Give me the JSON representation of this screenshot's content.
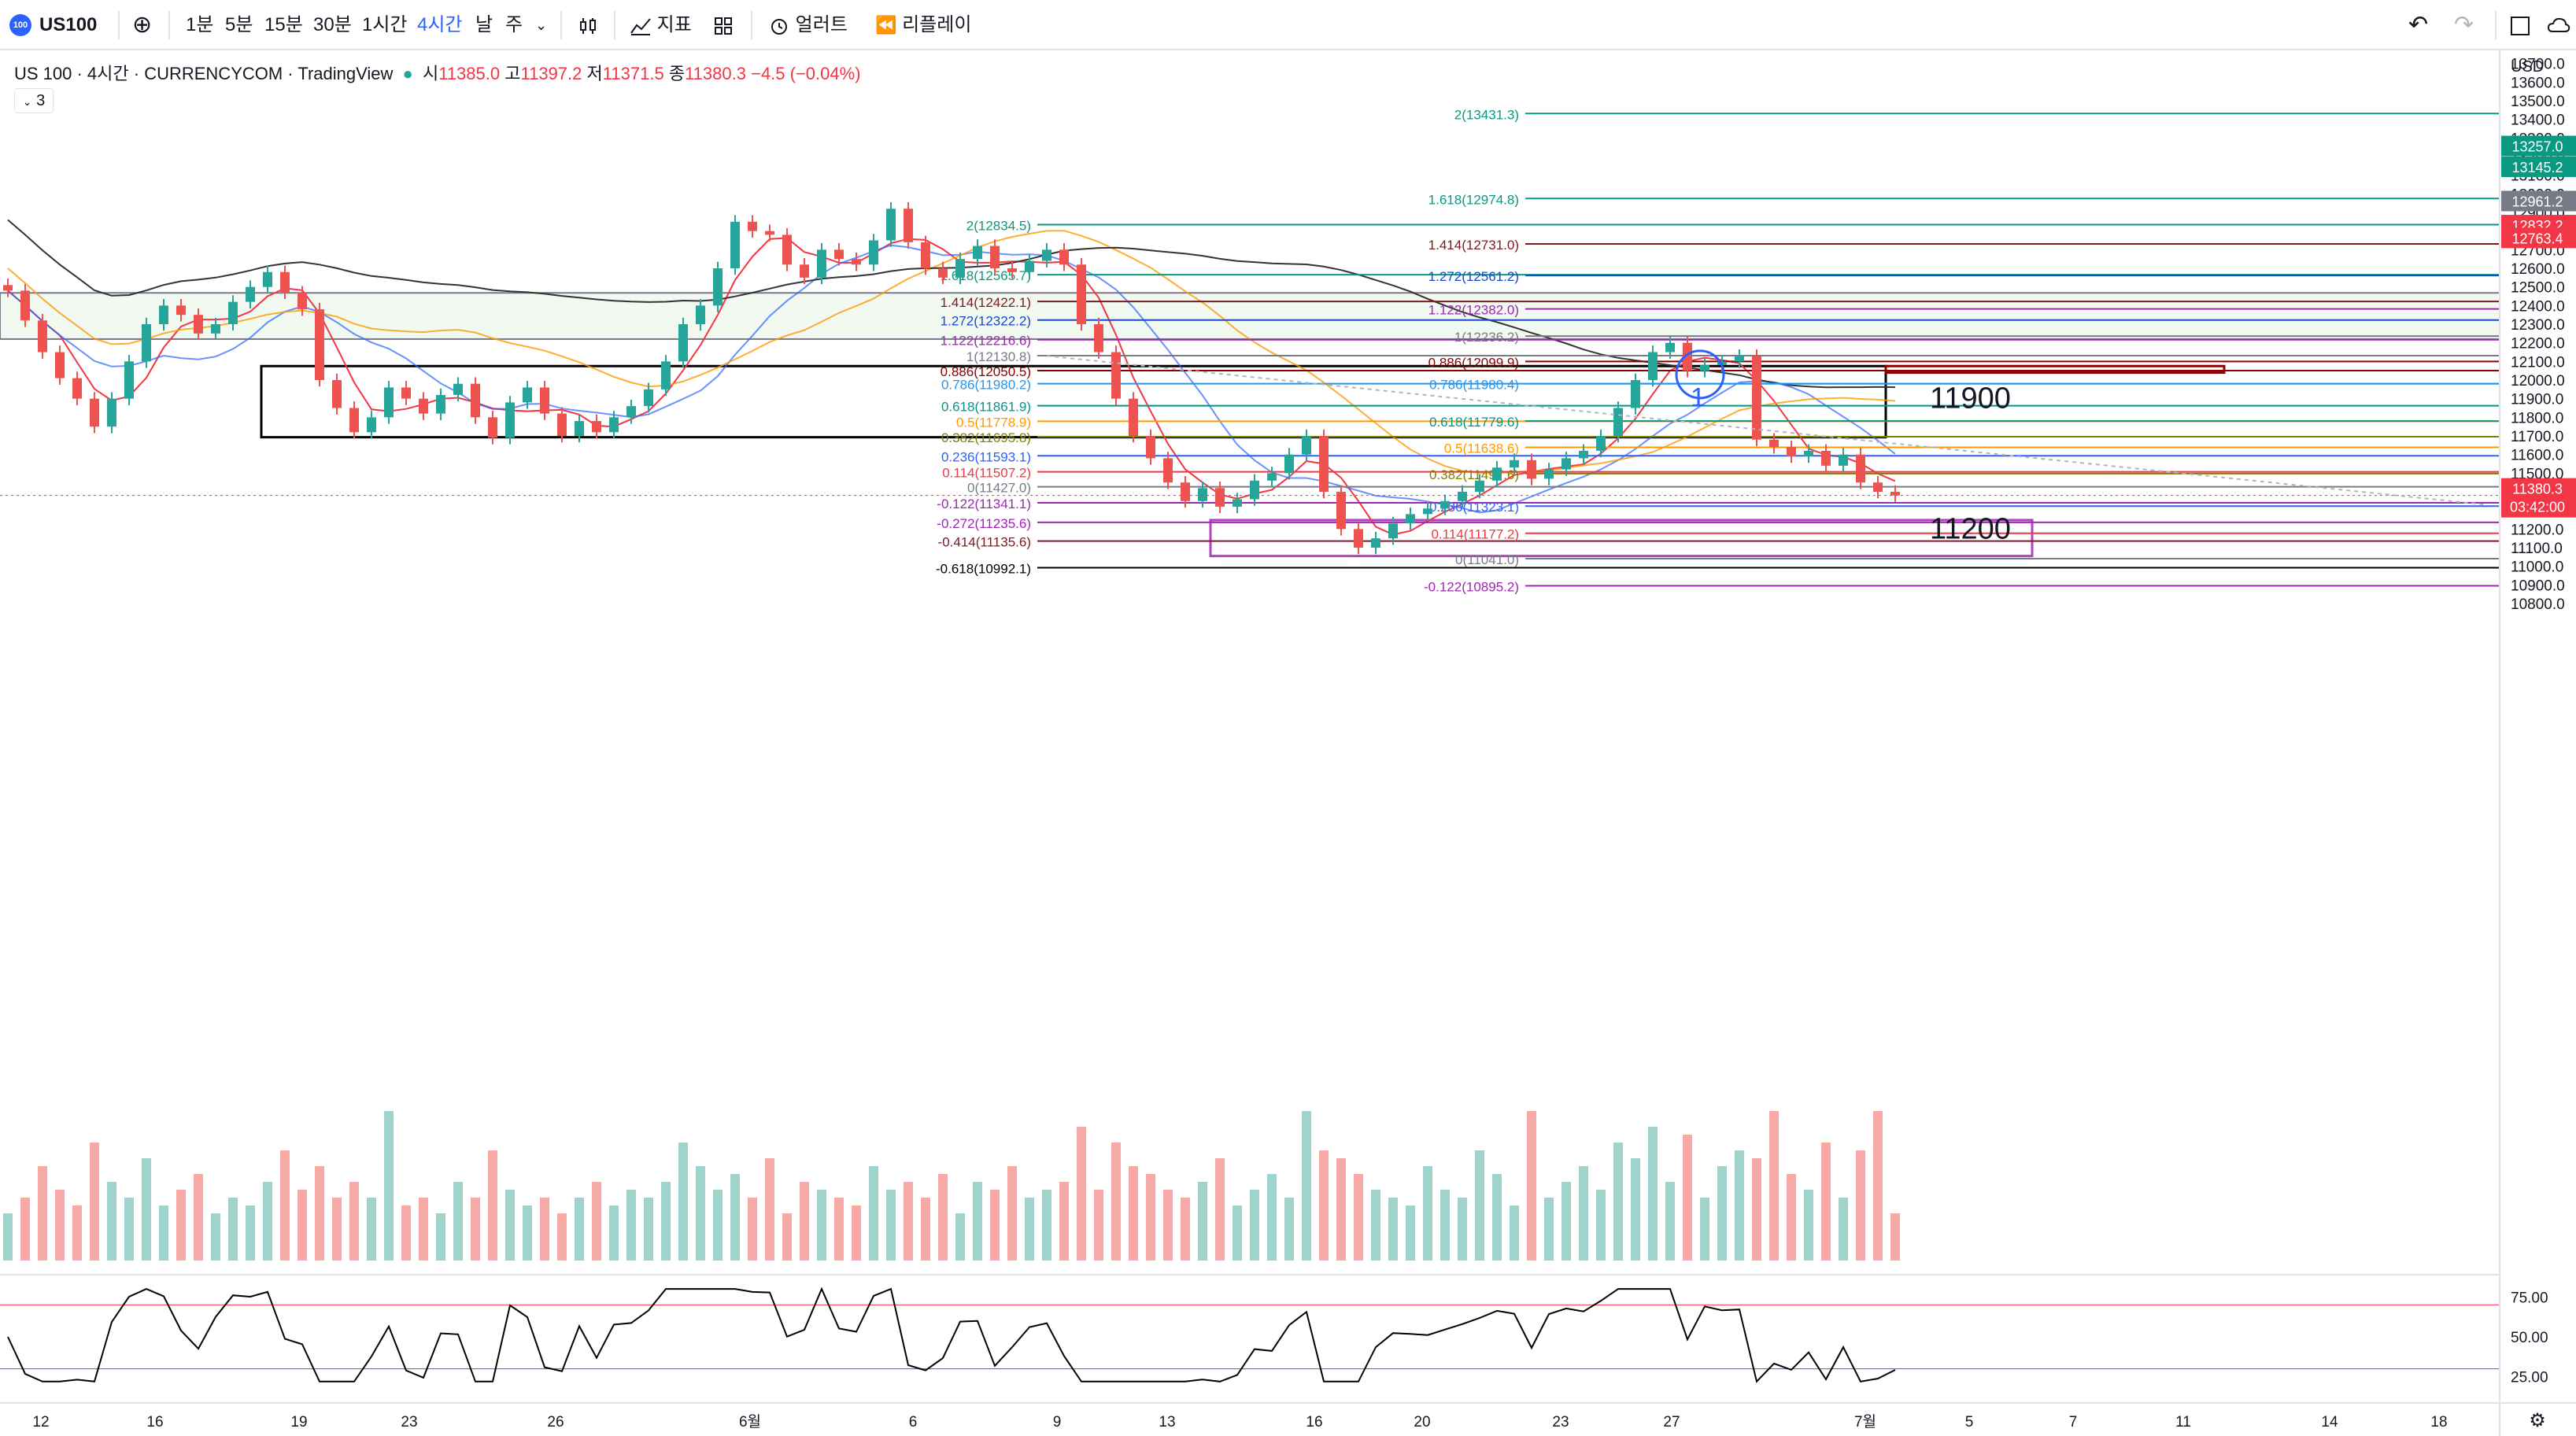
{
  "toolbar": {
    "symbol": "US100",
    "logo_text": "100",
    "intervals": [
      "1분",
      "5분",
      "15분",
      "30분",
      "1시간",
      "4시간",
      "날",
      "주"
    ],
    "active_interval": "4시간",
    "indicators_label": "지표",
    "alert_label": "얼러트",
    "replay_label": "리플레이"
  },
  "legend": {
    "title": "US 100 · 4시간 · CURRENCYCOM · TradingView",
    "open_label": "시",
    "open": "11385.0",
    "high_label": "고",
    "high": "11397.2",
    "low_label": "저",
    "low": "11371.5",
    "close_label": "종",
    "close": "11380.3",
    "change": "−4.5 (−0.04%)",
    "badge": "3"
  },
  "currency": "USD",
  "colors": {
    "up": "#26a69a",
    "down": "#ef5350",
    "up_vol": "#9fd3cc",
    "down_vol": "#f7a9a7",
    "accent": "#2962ff"
  },
  "chart_data": [
    {
      "type": "candlestick",
      "symbol": "US 100",
      "interval": "4시간",
      "y_ticks": [
        10800,
        10900,
        11000,
        11100,
        11200,
        11300,
        11400,
        11500,
        11600,
        11700,
        11800,
        11900,
        12000,
        12100,
        12200,
        12300,
        12400,
        12500,
        12600,
        12700,
        12800,
        12900,
        13000,
        13100,
        13200,
        13300,
        13400,
        13500,
        13600,
        13700,
        13800
      ],
      "x_ticks": [
        "12",
        "16",
        "19",
        "23",
        "26",
        "6월",
        "6",
        "9",
        "13",
        "16",
        "20",
        "23",
        "27",
        "7월",
        "5",
        "7",
        "11",
        "14",
        "18"
      ],
      "price_badges": [
        "13257.0",
        "13145.2",
        "12961.3",
        "12961.2",
        "12832.2",
        "12763.4"
      ],
      "last_price": "11380.3",
      "countdown": "03:42:00",
      "annotations": [
        "11900",
        "11200",
        "1"
      ],
      "zones": [
        {
          "from": 11693,
          "to": 12075,
          "label": "11900"
        },
        {
          "from": 11055,
          "to": 11248,
          "label": "11200"
        },
        {
          "from": 12220,
          "to": 12468
        }
      ],
      "fib_left": [
        "2(12834.5)",
        "1.618(12565.7)",
        "1.414(12422.1)",
        "1.272(12322.2)",
        "1.122(12216.6)",
        "1(12130.8)",
        "0.886(12050.5)",
        "0.786(11980.2)",
        "0.618(11861.9)",
        "0.5(11778.9)",
        "0.382(11695.8)",
        "0.236(11593.1)",
        "0.114(11507.2)",
        "0(11427.0)",
        "-0.122(11341.1)",
        "-0.272(11235.6)",
        "-0.414(11135.6)",
        "-0.618(10992.1)"
      ],
      "fib_right": [
        "2(13431.3)",
        "1.618(12974.8)",
        "1.414(12731.0)",
        "1.272(12561.2)",
        "1.122(12382.0)",
        "1(12236.2)",
        "0.886(12099.9)",
        "0.786(11980.4)",
        "0.618(11779.6)",
        "0.5(11638.6)",
        "0.382(11497.6)",
        "0.236(11323.1)",
        "0.114(11177.2)",
        "0(11041.0)",
        "-0.122(10895.2)"
      ],
      "close_series": [
        12480,
        12320,
        12150,
        12010,
        11900,
        11750,
        11900,
        12100,
        12300,
        12400,
        12350,
        12250,
        12300,
        12420,
        12500,
        12580,
        12470,
        12380,
        12000,
        11850,
        11720,
        11800,
        11960,
        11900,
        11820,
        11920,
        11980,
        11800,
        11690,
        11880,
        11960,
        11820,
        11700,
        11780,
        11720,
        11800,
        11860,
        11950,
        12100,
        12300,
        12400,
        12600,
        12850,
        12800,
        12780,
        12620,
        12550,
        12700,
        12650,
        12620,
        12750,
        12920,
        12740,
        12600,
        12550,
        12650,
        12720,
        12600,
        12580,
        12640,
        12700,
        12620,
        12300,
        12150,
        11900,
        11700,
        11580,
        11450,
        11350,
        11420,
        11320,
        11360,
        11460,
        11500,
        11600,
        11700,
        11400,
        11200,
        11100,
        11150,
        11230,
        11280,
        11310,
        11350,
        11400,
        11460,
        11530,
        11570,
        11470,
        11520,
        11580,
        11620,
        11700,
        11850,
        12000,
        12150,
        12200,
        12050,
        12080,
        12100,
        12130,
        11680,
        11640,
        11590,
        11620,
        11540,
        11600,
        11450,
        11400,
        11380.3
      ],
      "rsi": {
        "levels": [
          70,
          30
        ],
        "ticks": [
          "75.00",
          "50.00",
          "25.00"
        ]
      }
    }
  ]
}
